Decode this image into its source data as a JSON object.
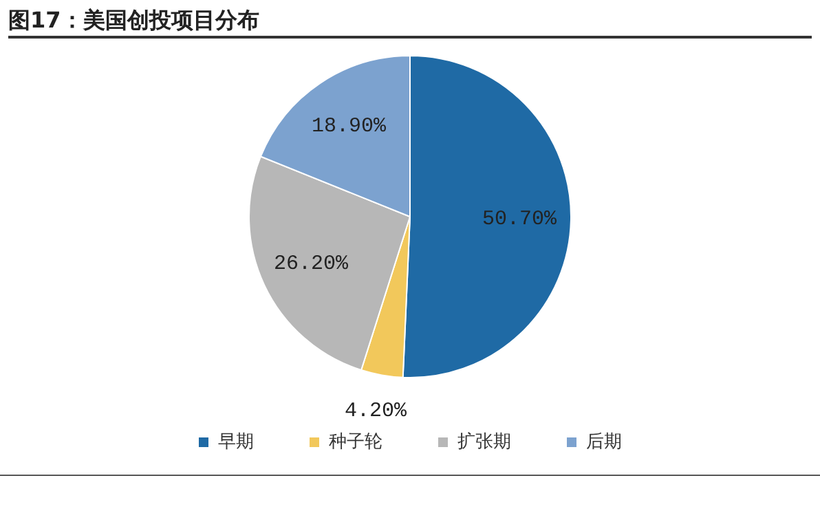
{
  "chart_data": {
    "type": "pie",
    "title": "图17：美国创投项目分布",
    "categories": [
      "早期",
      "种子轮",
      "扩张期",
      "后期"
    ],
    "values": [
      50.7,
      4.2,
      26.2,
      18.9
    ],
    "colors": [
      "#1f6aa5",
      "#f2c85b",
      "#b7b7b7",
      "#7ca2cf"
    ],
    "value_labels": [
      "50.70%",
      "4.20%",
      "26.20%",
      "18.90%"
    ],
    "legend": "bottom"
  }
}
